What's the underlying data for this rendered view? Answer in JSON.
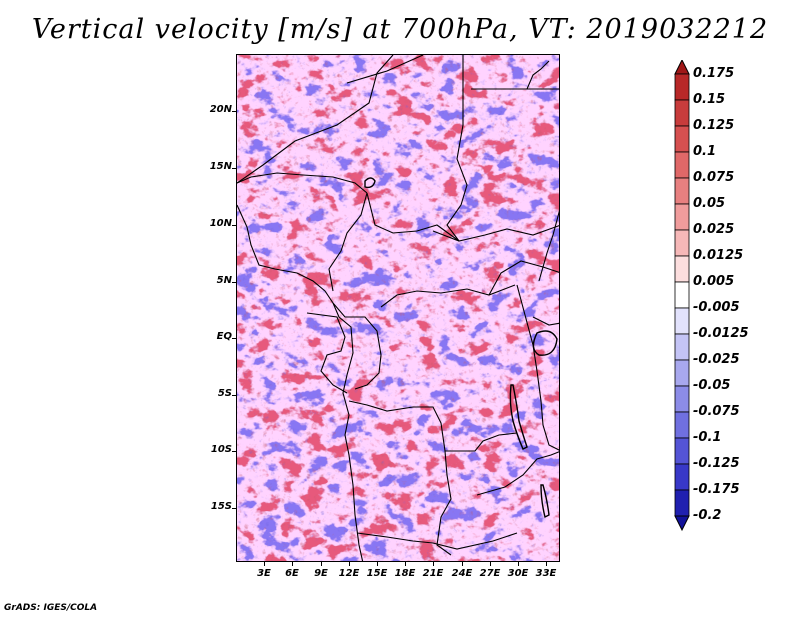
{
  "title": "Vertical velocity [m/s] at 700hPa, VT: 2019032212",
  "footer": "GrADS: IGES/COLA",
  "map": {
    "variable": "vertical velocity",
    "units": "m/s",
    "level": "700hPa",
    "valid_time": "2019032212",
    "lat_labels": [
      "20N",
      "15N",
      "10N",
      "5N",
      "EQ",
      "5S",
      "10S",
      "15S"
    ],
    "lon_labels": [
      "3E",
      "6E",
      "9E",
      "12E",
      "15E",
      "18E",
      "21E",
      "24E",
      "27E",
      "30E",
      "33E"
    ]
  },
  "colorbar": {
    "labels": [
      "0.175",
      "0.15",
      "0.125",
      "0.1",
      "0.075",
      "0.05",
      "0.025",
      "0.0125",
      "0.005",
      "-0.005",
      "-0.0125",
      "-0.025",
      "-0.05",
      "-0.075",
      "-0.1",
      "-0.125",
      "-0.175",
      "-0.2"
    ],
    "colors": [
      "#a01818",
      "#b82828",
      "#c83c3c",
      "#d65050",
      "#e06868",
      "#e88080",
      "#f09c9c",
      "#f6b8b8",
      "#fcdede",
      "#ffffff",
      "#e2e2fc",
      "#c4c4f6",
      "#a8a8ee",
      "#8c8ce8",
      "#7070e0",
      "#5454d6",
      "#3838c8",
      "#2020b0",
      "#12129a"
    ]
  }
}
